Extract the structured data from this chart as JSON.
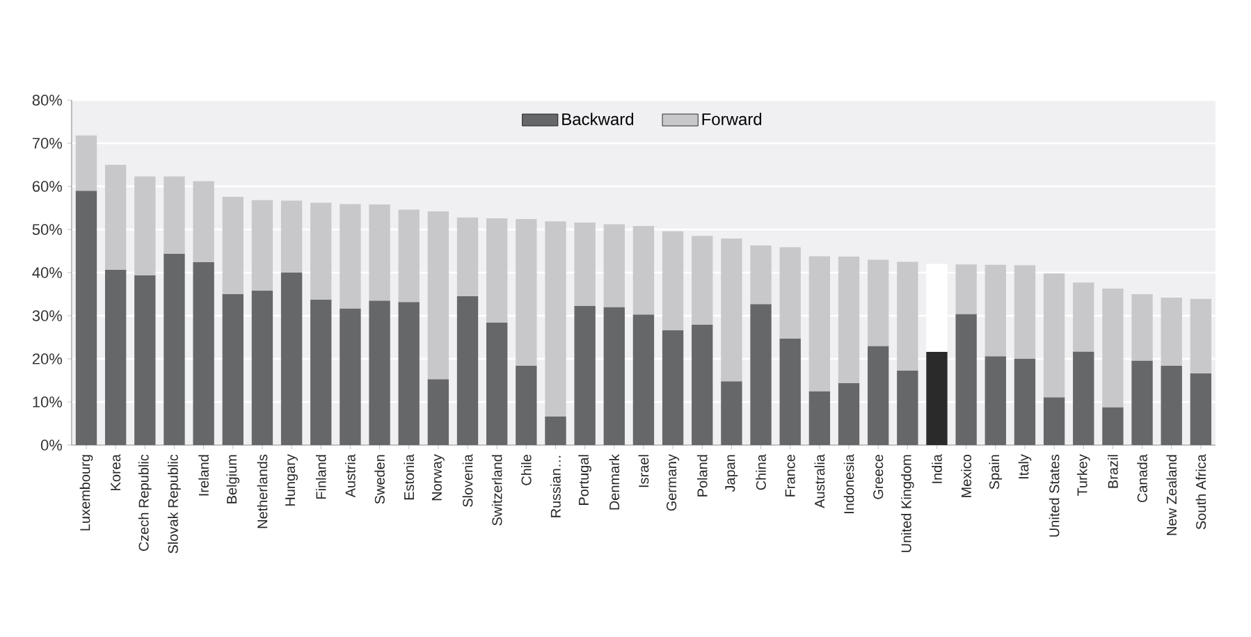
{
  "chart_data": {
    "type": "bar",
    "stacked": true,
    "categories": [
      "Luxembourg",
      "Korea",
      "Czech Republic",
      "Slovak Republic",
      "Ireland",
      "Belgium",
      "Netherlands",
      "Hungary",
      "Finland",
      "Austria",
      "Sweden",
      "Estonia",
      "Norway",
      "Slovenia",
      "Switzerland",
      "Chile",
      "Russian…",
      "Portugal",
      "Denmark",
      "Israel",
      "Germany",
      "Poland",
      "Japan",
      "China",
      "France",
      "Australia",
      "Indonesia",
      "Greece",
      "United Kingdom",
      "India",
      "Mexico",
      "Spain",
      "Italy",
      "United States",
      "Turkey",
      "Brazil",
      "Canada",
      "New Zealand",
      "South Africa"
    ],
    "series": [
      {
        "name": "Backward",
        "color": "#666769",
        "colors": [
          "#666769",
          "#666769",
          "#666769",
          "#666769",
          "#666769",
          "#666769",
          "#666769",
          "#666769",
          "#666769",
          "#666769",
          "#666769",
          "#666769",
          "#666769",
          "#666769",
          "#666769",
          "#666769",
          "#666769",
          "#666769",
          "#666769",
          "#666769",
          "#666769",
          "#666769",
          "#666769",
          "#666769",
          "#666769",
          "#666769",
          "#666769",
          "#666769",
          "#666769",
          "#2b2a2b",
          "#666769",
          "#666769",
          "#666769",
          "#666769",
          "#666769",
          "#666769",
          "#666769",
          "#666769",
          "#666769"
        ],
        "values": [
          59,
          40.7,
          39.4,
          44.4,
          42.4,
          35,
          35.8,
          40,
          33.7,
          31.7,
          33.5,
          33.2,
          15.3,
          34.5,
          28.4,
          18.4,
          6.6,
          32.3,
          32,
          30.3,
          26.6,
          27.9,
          14.8,
          32.7,
          24.7,
          12.5,
          14.4,
          23,
          17.3,
          21.6,
          30.4,
          20.6,
          20,
          11.1,
          21.7,
          8.8,
          19.6,
          18.4,
          16.6
        ]
      },
      {
        "name": "Forward",
        "color": "#c8c8ca",
        "colors": [
          "#c8c8ca",
          "#c8c8ca",
          "#c8c8ca",
          "#c8c8ca",
          "#c8c8ca",
          "#c8c8ca",
          "#c8c8ca",
          "#c8c8ca",
          "#c8c8ca",
          "#c8c8ca",
          "#c8c8ca",
          "#c8c8ca",
          "#c8c8ca",
          "#c8c8ca",
          "#c8c8ca",
          "#c8c8ca",
          "#c8c8ca",
          "#c8c8ca",
          "#c8c8ca",
          "#c8c8ca",
          "#c8c8ca",
          "#c8c8ca",
          "#c8c8ca",
          "#c8c8ca",
          "#c8c8ca",
          "#c8c8ca",
          "#c8c8ca",
          "#c8c8ca",
          "#c8c8ca",
          "#ffffff",
          "#c8c8ca",
          "#c8c8ca",
          "#c8c8ca",
          "#c8c8ca",
          "#c8c8ca",
          "#c8c8ca",
          "#c8c8ca",
          "#c8c8ca",
          "#c8c8ca"
        ],
        "values": [
          12.8,
          24.3,
          22.9,
          17.9,
          18.8,
          22.6,
          21,
          16.7,
          22.5,
          24.2,
          22.3,
          21.4,
          38.9,
          18.3,
          24.2,
          34,
          45.3,
          19.3,
          19.2,
          20.5,
          23,
          20.6,
          33.1,
          13.6,
          21.2,
          31.3,
          29.3,
          20,
          25.2,
          20.4,
          11.5,
          21.2,
          21.7,
          28.7,
          16,
          27.5,
          15.4,
          15.8,
          17.3
        ]
      }
    ],
    "ylim": [
      0,
      80
    ],
    "yticks": [
      {
        "value": 0,
        "label": "0%"
      },
      {
        "value": 10,
        "label": "10%"
      },
      {
        "value": 20,
        "label": "20%"
      },
      {
        "value": 30,
        "label": "30%"
      },
      {
        "value": 40,
        "label": "40%"
      },
      {
        "value": 50,
        "label": "50%"
      },
      {
        "value": 60,
        "label": "60%"
      },
      {
        "value": 70,
        "label": "70%"
      },
      {
        "value": 80,
        "label": "80%"
      }
    ],
    "grid": "y",
    "legend": "top"
  }
}
